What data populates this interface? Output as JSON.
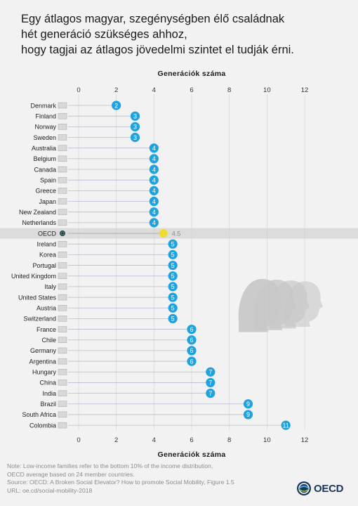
{
  "title": "Egy átlagos magyar, szegénységben élő családnak\nhét generáció szükséges ahhoz,\nhogy tagjai az átlagos jövedelmi szintet el tudják érni.",
  "colors": {
    "bubble": "#1fa3e0",
    "oecd_marker": "#f0dc2a",
    "line": "#b7bccd",
    "highlight_band": "#dcdcdc"
  },
  "chart_data": {
    "type": "dot",
    "xlabel": "Generációk száma",
    "xlim": [
      0,
      12
    ],
    "xticks": [
      0,
      2,
      4,
      6,
      8,
      10,
      12
    ],
    "grid": "vertical",
    "categories": [
      "Denmark",
      "Finland",
      "Norway",
      "Sweden",
      "Australia",
      "Belgium",
      "Canada",
      "Spain",
      "Greece",
      "Japan",
      "New Zealand",
      "Netherlands",
      "OECD",
      "Ireland",
      "Korea",
      "Portugal",
      "United Kingdom",
      "Italy",
      "United States",
      "Austria",
      "Switzerland",
      "France",
      "Chile",
      "Germany",
      "Argentina",
      "Hungary",
      "China",
      "India",
      "Brazil",
      "South Africa",
      "Colombia"
    ],
    "values": [
      2,
      3,
      3,
      3,
      4,
      4,
      4,
      4,
      4,
      4,
      4,
      4,
      4.5,
      5,
      5,
      5,
      5,
      5,
      5,
      5,
      5,
      6,
      6,
      6,
      6,
      7,
      7,
      7,
      9,
      9,
      11
    ],
    "labels": [
      "2",
      "3",
      "3",
      "3",
      "4",
      "4",
      "4",
      "4",
      "4",
      "4",
      "4",
      "4",
      "4.5",
      "5",
      "5",
      "5",
      "5",
      "5",
      "5",
      "5",
      "5",
      "6",
      "6",
      "6",
      "6",
      "7",
      "7",
      "7",
      "9",
      "9",
      "11"
    ],
    "highlight": "OECD"
  },
  "notes": [
    "Note: Low-income families refer to the bottom 10% of the income distribution,",
    "OECD average based on 24 member countries.",
    "Source: OECD: A Broken Social Elevator? How to promote Social Mobility, Figure 1.5",
    "URL: oe.cd/social-mobility-2018"
  ],
  "logo": {
    "text": "OECD",
    "icon": "oecd-globe-icon"
  }
}
